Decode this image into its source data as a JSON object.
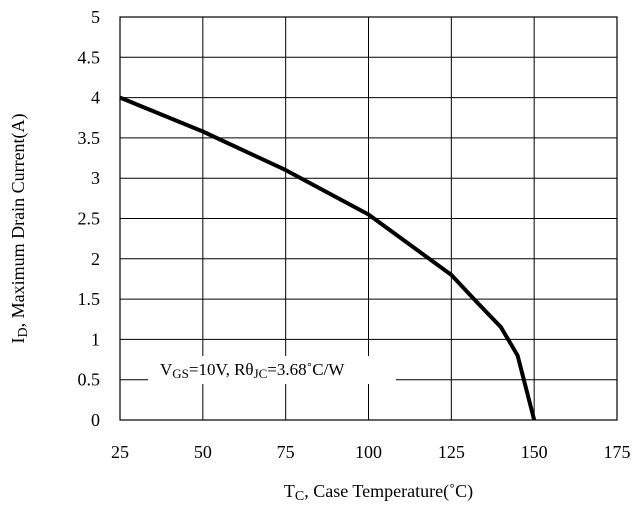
{
  "chart_data": {
    "type": "line",
    "x_ticks": [
      "25",
      "50",
      "75",
      "100",
      "125",
      "150",
      "175"
    ],
    "y_ticks": [
      "0",
      "0.5",
      "1",
      "1.5",
      "2",
      "2.5",
      "3",
      "3.5",
      "4",
      "4.5",
      "5"
    ],
    "xlim": [
      25,
      175
    ],
    "ylim": [
      0,
      5
    ],
    "grid": true,
    "xlabel": {
      "main": "T",
      "sub": "C",
      "rest": ", Case Temperature(˚C)"
    },
    "ylabel": {
      "main": "I",
      "sub": "D",
      "rest": ", Maximum Drain Current(A)"
    },
    "annotation": {
      "v": "V",
      "v_sub": "GS",
      "v_rest": "=10V, Rθ",
      "r_sub": "JC",
      "r_rest": "=3.68˚C/W"
    },
    "series": [
      {
        "x": [
          25,
          50,
          75,
          100,
          125,
          133,
          140,
          145,
          150
        ],
        "y": [
          4.0,
          3.58,
          3.1,
          2.55,
          1.8,
          1.45,
          1.15,
          0.8,
          0.0
        ]
      }
    ],
    "line_color": "#000000"
  }
}
